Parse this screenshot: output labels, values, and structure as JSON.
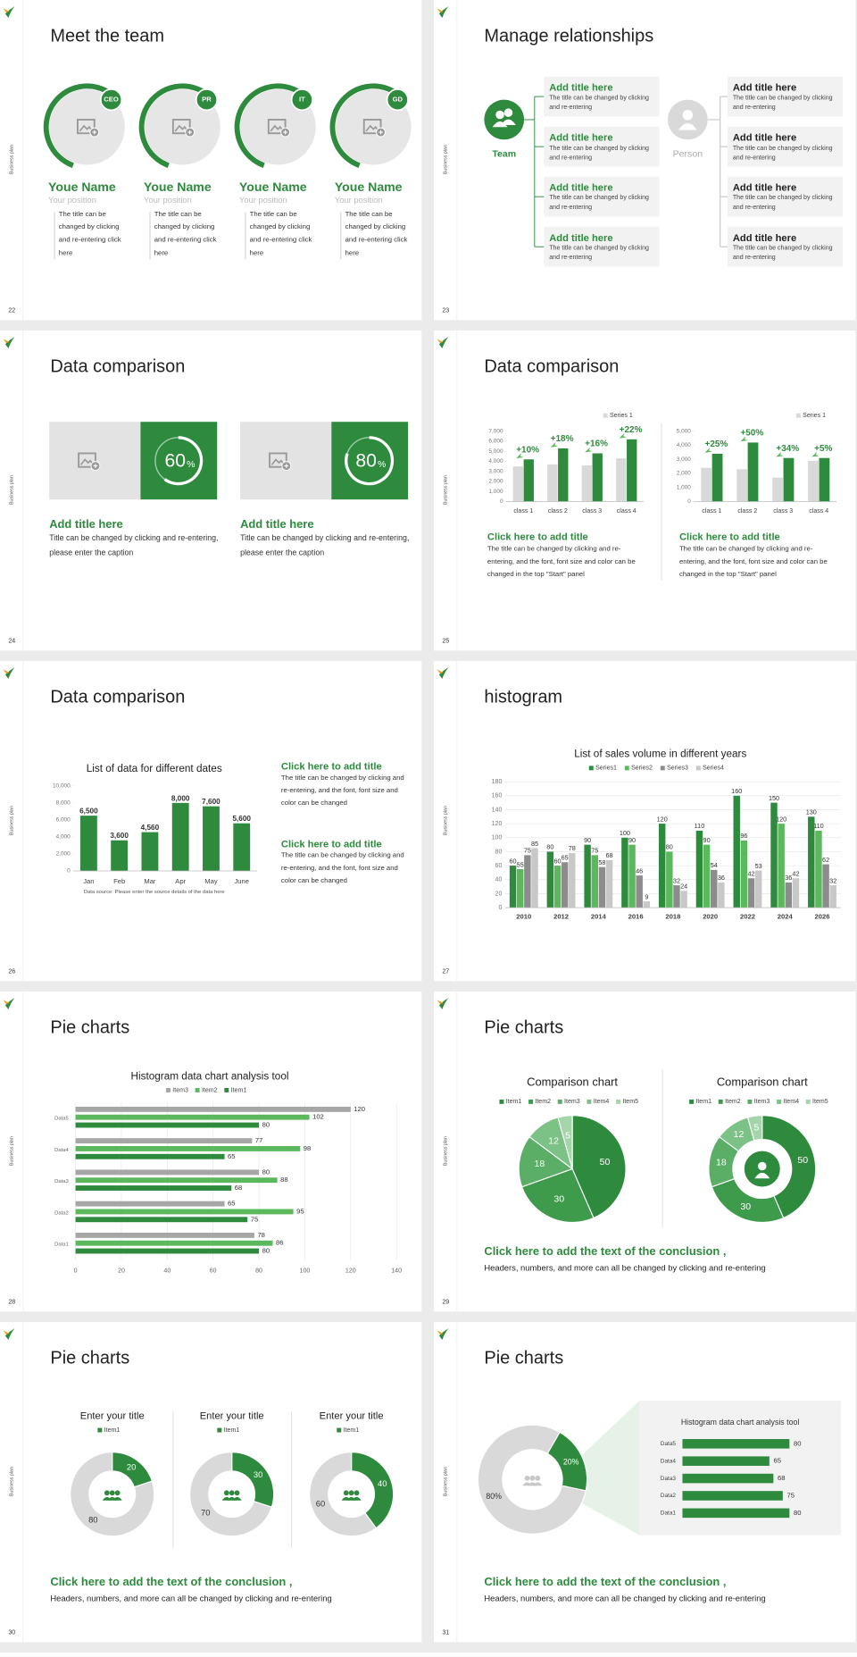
{
  "slides": [
    {
      "number": "22",
      "side_label": "Business plan",
      "title": "Meet the team",
      "members": [
        {
          "badge": "CEO",
          "name": "Youe Name",
          "position": "Your position",
          "text": "The title can be changed by clicking and re-entering click here"
        },
        {
          "badge": "PR",
          "name": "Youe Name",
          "position": "Your position",
          "text": "The title can be changed by clicking and re-entering click here"
        },
        {
          "badge": "IT",
          "name": "Youe Name",
          "position": "Your position",
          "text": "The title can be changed by clicking and re-entering click here"
        },
        {
          "badge": "GD",
          "name": "Youe Name",
          "position": "Your position",
          "text": "The title can be changed by clicking and re-entering click here"
        }
      ]
    },
    {
      "number": "23",
      "side_label": "Business plan",
      "title": "Manage relationships",
      "left": {
        "label": "Team",
        "items": [
          {
            "title": "Add title here",
            "text": "The title can be changed by clicking and re-entering"
          },
          {
            "title": "Add title here",
            "text": "The title can be changed by clicking and re-entering"
          },
          {
            "title": "Add title here",
            "text": "The title can be changed by clicking and re-entering"
          },
          {
            "title": "Add title here",
            "text": "The title can be changed by clicking and re-entering"
          }
        ]
      },
      "right": {
        "label": "Person",
        "items": [
          {
            "title": "Add title here",
            "text": "The title can be changed by clicking and re-entering"
          },
          {
            "title": "Add title here",
            "text": "The title can be changed by clicking and re-entering"
          },
          {
            "title": "Add title here",
            "text": "The title can be changed by clicking and re-entering"
          },
          {
            "title": "Add title here",
            "text": "The title can be changed by clicking and re-entering"
          }
        ]
      }
    },
    {
      "number": "24",
      "side_label": "Business plan",
      "title": "Data comparison",
      "cards": [
        {
          "value": 60,
          "unit": "%",
          "title": "Add title here",
          "text": "Title can be changed by clicking and re-entering, please enter the caption"
        },
        {
          "value": 80,
          "unit": "%",
          "title": "Add title here",
          "text": "Title can be changed by clicking and re-entering, please enter the caption"
        }
      ]
    },
    {
      "number": "25",
      "side_label": "Business plan",
      "title": "Data comparison",
      "charts": [
        {
          "type": "bar",
          "categories": [
            "class 1",
            "class 2",
            "class 3",
            "class 4"
          ],
          "series": [
            {
              "name": "Series 1",
              "color": "#d9d9d9",
              "values": [
                3500,
                3700,
                3600,
                4300
              ]
            },
            {
              "color": "#2e8b3e",
              "values": [
                4200,
                5300,
                4800,
                6200
              ]
            }
          ],
          "annotations": [
            "+10%",
            "+18%",
            "+16%",
            "+22%"
          ],
          "ylim": [
            0,
            7000
          ],
          "yticks": [
            0,
            {
              "value": 1000,
              "label": "1,000"
            },
            {
              "value": 2000,
              "label": "2,000"
            },
            {
              "value": 3000,
              "label": "3,000"
            },
            {
              "value": 4000,
              "label": "4,000"
            },
            {
              "value": 5000,
              "label": "5,000"
            },
            {
              "value": 6000,
              "label": "6,000"
            },
            {
              "value": 7000,
              "label": "7,000"
            }
          ],
          "heading": "Click here to add title",
          "text": "The title can be changed by clicking and re-entering, and the font, font size and color can be changed in the top \"Start\" panel"
        },
        {
          "type": "bar",
          "categories": [
            "class 1",
            "class 2",
            "class 3",
            "class 4"
          ],
          "series": [
            {
              "name": "Series 1",
              "color": "#d9d9d9",
              "values": [
                2400,
                2300,
                1700,
                2900
              ]
            },
            {
              "color": "#2e8b3e",
              "values": [
                3400,
                4200,
                3100,
                3100
              ]
            }
          ],
          "annotations": [
            "+25%",
            "+50%",
            "+34%",
            "+5%"
          ],
          "ylim": [
            0,
            5000
          ],
          "yticks": [
            0,
            {
              "value": 1000,
              "label": "1,000"
            },
            {
              "value": 2000,
              "label": "2,000"
            },
            {
              "value": 3000,
              "label": "3,000"
            },
            {
              "value": 4000,
              "label": "4,000"
            },
            {
              "value": 5000,
              "label": "5,000"
            }
          ],
          "heading": "Click here to add title",
          "text": "The title can be changed by clicking and re-entering, and the font, font size and color can be changed in the top \"Start\" panel"
        }
      ]
    },
    {
      "number": "26",
      "side_label": "Business plan",
      "title": "Data comparison",
      "chart": {
        "type": "bar",
        "title": "List of data for different dates",
        "categories": [
          "Jan",
          "Feb",
          "Mar",
          "Apr",
          "May",
          "June"
        ],
        "values": [
          6500,
          3600,
          4560,
          8000,
          7600,
          5600
        ],
        "value_labels": [
          "6,500",
          "3,600",
          "4,560",
          "8,000",
          "7,600",
          "5,600"
        ],
        "color": "#2e8b3e",
        "ylim": [
          0,
          10000
        ],
        "yticks": [
          0,
          {
            "value": 2000,
            "label": "2,000"
          },
          {
            "value": 4000,
            "label": "4,000"
          },
          {
            "value": 6000,
            "label": "6,000"
          },
          {
            "value": 8000,
            "label": "8,000"
          },
          {
            "value": 10000,
            "label": "10,000"
          }
        ],
        "note": "Data source: Please enter the source details of the data here"
      },
      "blocks": [
        {
          "title": "Click here to add title",
          "text": "The title can be changed by clicking and re-entering, and the font, font size and color can be changed"
        },
        {
          "title": "Click here to add title",
          "text": "The title can be changed by clicking and re-entering, and the font, font size and color can be changed"
        }
      ]
    },
    {
      "number": "27",
      "side_label": "Business plan",
      "title": "histogram",
      "chart": {
        "type": "bar",
        "title": "List of sales volume in different years",
        "categories": [
          "2010",
          "2012",
          "2014",
          "2016",
          "2018",
          "2020",
          "2022",
          "2024",
          "2026"
        ],
        "series": [
          {
            "name": "Series1",
            "color": "#2e8b3e",
            "values": [
              60,
              80,
              90,
              100,
              120,
              110,
              160,
              150,
              130
            ]
          },
          {
            "name": "Series2",
            "color": "#5cb85c",
            "values": [
              55,
              60,
              75,
              90,
              80,
              90,
              96,
              120,
              110
            ]
          },
          {
            "name": "Series3",
            "color": "#8c8c8c",
            "values": [
              75,
              65,
              58,
              46,
              32,
              54,
              42,
              36,
              62
            ]
          },
          {
            "name": "Series4",
            "color": "#c8c8c8",
            "values": [
              85,
              78,
              68,
              9,
              24,
              36,
              53,
              42,
              32
            ]
          }
        ],
        "ylim": [
          0,
          180
        ],
        "yticks": [
          0,
          20,
          40,
          60,
          80,
          100,
          120,
          140,
          160,
          180
        ],
        "grid": true
      }
    },
    {
      "number": "28",
      "side_label": "Business plan",
      "title": "Pie charts",
      "chart": {
        "type": "hbar",
        "title": "Histogram data chart analysis tool",
        "categories": [
          "Data5",
          "Data4",
          "Data3",
          "Data2",
          "Data1"
        ],
        "series": [
          {
            "name": "Item3",
            "color": "#a6a6a6",
            "values": [
              120,
              77,
              80,
              65,
              78
            ]
          },
          {
            "name": "Item2",
            "color": "#5cb85c",
            "values": [
              102,
              98,
              88,
              95,
              86
            ]
          },
          {
            "name": "Item1",
            "color": "#2e8b3e",
            "values": [
              80,
              65,
              68,
              75,
              80
            ]
          }
        ],
        "xlim": [
          0,
          140
        ],
        "xticks": [
          0,
          20,
          40,
          60,
          80,
          100,
          120,
          140
        ],
        "grid": true
      }
    },
    {
      "number": "29",
      "side_label": "Business plan",
      "title": "Pie charts",
      "charts": [
        {
          "type": "pie",
          "title": "Comparison chart",
          "categories": [
            "Item1",
            "Item2",
            "Item3",
            "Item4",
            "Item5"
          ],
          "values": [
            50,
            30,
            18,
            12,
            5
          ],
          "colors": [
            "#2e8b3e",
            "#3d9b4b",
            "#5aae66",
            "#7cc186",
            "#a5d6ab"
          ]
        },
        {
          "type": "donut",
          "title": "Comparison chart",
          "categories": [
            "Item1",
            "Item2",
            "Item3",
            "Item4",
            "Item5"
          ],
          "values": [
            50,
            30,
            18,
            12,
            5
          ],
          "colors": [
            "#2e8b3e",
            "#3d9b4b",
            "#5aae66",
            "#7cc186",
            "#a5d6ab"
          ]
        }
      ],
      "conclusion": {
        "title": "Click here to add the text of the conclusion ,",
        "text": "Headers, numbers, and more can all be changed by clicking and re-entering"
      }
    },
    {
      "number": "30",
      "side_label": "Business plan",
      "title": "Pie charts",
      "charts": [
        {
          "type": "donut",
          "title": "Enter your title",
          "categories": [
            "Item1",
            null
          ],
          "values": [
            20,
            80
          ],
          "colors": [
            "#2e8b3e",
            "#d9d9d9"
          ]
        },
        {
          "type": "donut",
          "title": "Enter your title",
          "categories": [
            "Item1",
            null
          ],
          "values": [
            30,
            70
          ],
          "colors": [
            "#2e8b3e",
            "#d9d9d9"
          ]
        },
        {
          "type": "donut",
          "title": "Enter your title",
          "categories": [
            "Item1",
            null
          ],
          "values": [
            40,
            60
          ],
          "colors": [
            "#2e8b3e",
            "#d9d9d9"
          ]
        }
      ],
      "conclusion": {
        "title": "Click here to add the text of the conclusion ,",
        "text": "Headers, numbers, and more can all be changed by clicking and re-entering"
      }
    },
    {
      "number": "31",
      "side_label": "Business plan",
      "title": "Pie charts",
      "chart": {
        "type": "donut",
        "values": [
          20,
          80
        ],
        "value_labels": [
          "20%",
          "80%"
        ],
        "colors": [
          "#2e8b3e",
          "#d9d9d9"
        ]
      },
      "panel": {
        "type": "hbar",
        "title": "Histogram data chart analysis tool",
        "categories": [
          "Data5",
          "Data4",
          "Data3",
          "Data2",
          "Data1"
        ],
        "values": [
          80,
          65,
          68,
          75,
          80
        ],
        "color": "#2e8b3e"
      },
      "conclusion": {
        "title": "Click here to add the text of the conclusion ,",
        "text": "Headers, numbers, and more can all be changed by clicking and re-entering"
      }
    }
  ]
}
